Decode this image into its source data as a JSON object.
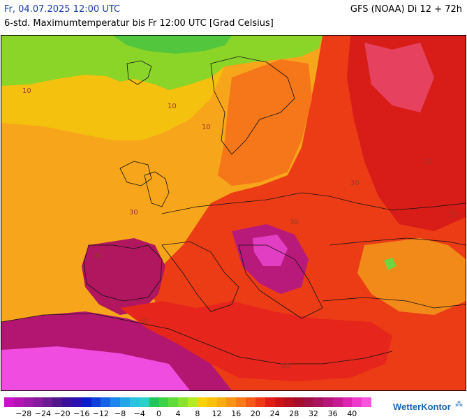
{
  "header": {
    "valid_time": "Fr, 04.07.2025 12:00 UTC",
    "model_run": "GFS (NOAA) Di 12 + 72h",
    "parameter": "6-std. Maximumtemperatur bis Fr 12:00 UTC [Grad Celsius]"
  },
  "map": {
    "region": "Europe",
    "contour_labels": [
      "10",
      "10",
      "10",
      "30",
      "30",
      "30",
      "30",
      "30",
      "30",
      "30",
      "30"
    ]
  },
  "legend": {
    "colors": [
      "#c811c8",
      "#b512b5",
      "#9d17a8",
      "#86199c",
      "#6b1a93",
      "#52168c",
      "#3a0f9c",
      "#2a10b3",
      "#0a1ccc",
      "#0f3fd8",
      "#1462e6",
      "#1c86ec",
      "#22a6e8",
      "#29c3de",
      "#2bd1c8",
      "#22c55a",
      "#3bd24a",
      "#5fdc3a",
      "#88e22e",
      "#b4ea22",
      "#f7d10a",
      "#f9c10c",
      "#f9ac12",
      "#f99415",
      "#f97a17",
      "#f65a16",
      "#ef3b15",
      "#e01e15",
      "#cc1418",
      "#b8101e",
      "#a40e2c",
      "#a01045",
      "#a8125e",
      "#b6167a",
      "#c81b93",
      "#dc24b0",
      "#ef39cb",
      "#fb55dd"
    ],
    "tick_labels": [
      "−28",
      "−24",
      "−20",
      "−16",
      "−12",
      "−8",
      "−4",
      "0",
      "4",
      "8",
      "12",
      "16",
      "20",
      "24",
      "28",
      "32",
      "36",
      "40"
    ],
    "tick_values": [
      -28,
      -24,
      -20,
      -16,
      -12,
      -8,
      -4,
      0,
      4,
      8,
      12,
      16,
      20,
      24,
      28,
      32,
      36,
      40
    ],
    "range": [
      -32,
      44
    ]
  },
  "brand": {
    "name": "WetterKontor",
    "icon": "rain-drops-icon"
  }
}
